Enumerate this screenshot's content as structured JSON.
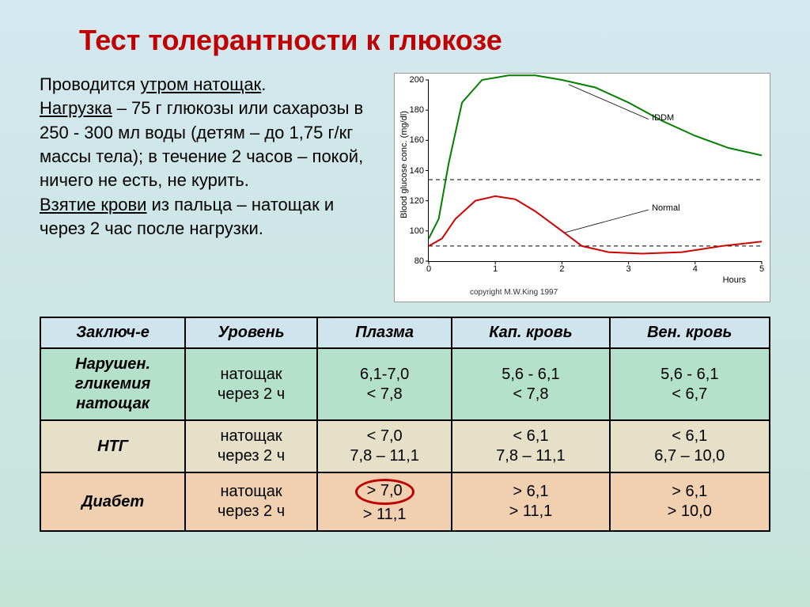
{
  "title": "Тест толерантности к глюкозе",
  "description": {
    "line1a": "Проводится ",
    "line1b": "утром натощак",
    "line1c": ".",
    "line2a": "Нагрузка",
    "line2b": " – 75 г глюкозы или сахарозы в 250 - 300 мл воды (детям – до 1,75 г/кг массы тела); в течение 2 часов – покой, ничего не есть, не курить.",
    "line3a": "Взятие крови",
    "line3b": " из пальца – натощак и через 2 час после нагрузки."
  },
  "chart": {
    "y_label": "Blood glucose conc. (mg/dl)",
    "x_label": "Hours",
    "copyright": "copyright M.W.King 1997",
    "y_min": 80,
    "y_max": 200,
    "y_tick_step": 20,
    "y_ticks": [
      80,
      100,
      120,
      140,
      160,
      180,
      200
    ],
    "x_ticks": [
      0,
      1,
      2,
      3,
      4,
      5
    ],
    "x_min": 0,
    "x_max": 5,
    "dashed_lines": [
      134,
      90
    ],
    "series": [
      {
        "name": "IDDM",
        "color": "#008000",
        "stroke_width": 2,
        "label_x": 3.35,
        "label_y": 175,
        "arrow_from_x": 3.3,
        "arrow_from_y": 174,
        "arrow_to_x": 2.1,
        "arrow_to_y": 197,
        "points": [
          [
            0.0,
            95
          ],
          [
            0.15,
            108
          ],
          [
            0.3,
            145
          ],
          [
            0.5,
            185
          ],
          [
            0.8,
            200
          ],
          [
            1.2,
            203
          ],
          [
            1.6,
            203
          ],
          [
            2.0,
            200
          ],
          [
            2.5,
            195
          ],
          [
            3.0,
            185
          ],
          [
            3.5,
            173
          ],
          [
            4.0,
            163
          ],
          [
            4.5,
            155
          ],
          [
            5.0,
            150
          ]
        ]
      },
      {
        "name": "Normal",
        "color": "#d00000",
        "stroke_width": 2,
        "label_x": 3.35,
        "label_y": 115,
        "arrow_from_x": 3.3,
        "arrow_from_y": 114,
        "arrow_to_x": 2.05,
        "arrow_to_y": 99,
        "points": [
          [
            0.0,
            90
          ],
          [
            0.2,
            95
          ],
          [
            0.4,
            108
          ],
          [
            0.7,
            120
          ],
          [
            1.0,
            123
          ],
          [
            1.3,
            121
          ],
          [
            1.6,
            113
          ],
          [
            2.0,
            100
          ],
          [
            2.3,
            90
          ],
          [
            2.7,
            86
          ],
          [
            3.2,
            85
          ],
          [
            3.8,
            86
          ],
          [
            4.4,
            90
          ],
          [
            5.0,
            93
          ]
        ]
      }
    ]
  },
  "table": {
    "headers": [
      "Заключ-е",
      "Уровень",
      "Плазма",
      "Кап. кровь",
      "Вен. кровь"
    ],
    "rows": [
      {
        "class": "row-green",
        "label_html": "Нарушен.<br>гликемия<br>натощак",
        "level": "натощак<br>через 2 ч",
        "plasma": "6,1-7,0<br>< 7,8",
        "cap": "5,6 - 6,1<br>< 7,8",
        "ven": "5,6 - 6,1<br>< 6,7"
      },
      {
        "class": "row-beige",
        "label_html": "НТГ",
        "level": "натощак<br>через 2 ч",
        "plasma": "< 7,0<br>7,8 – 11,1",
        "cap": "< 6,1<br>7,8 – 11,1",
        "ven": "< 6,1<br>6,7 – 10,0"
      },
      {
        "class": "row-peach",
        "label_html": "Диабет",
        "level": "натощак<br>через 2 ч",
        "plasma_oval": "> 7,0",
        "plasma_rest": "> 11,1",
        "cap": "> 6,1<br>> 11,1",
        "ven": "> 6,1<br>> 10,0"
      }
    ]
  }
}
